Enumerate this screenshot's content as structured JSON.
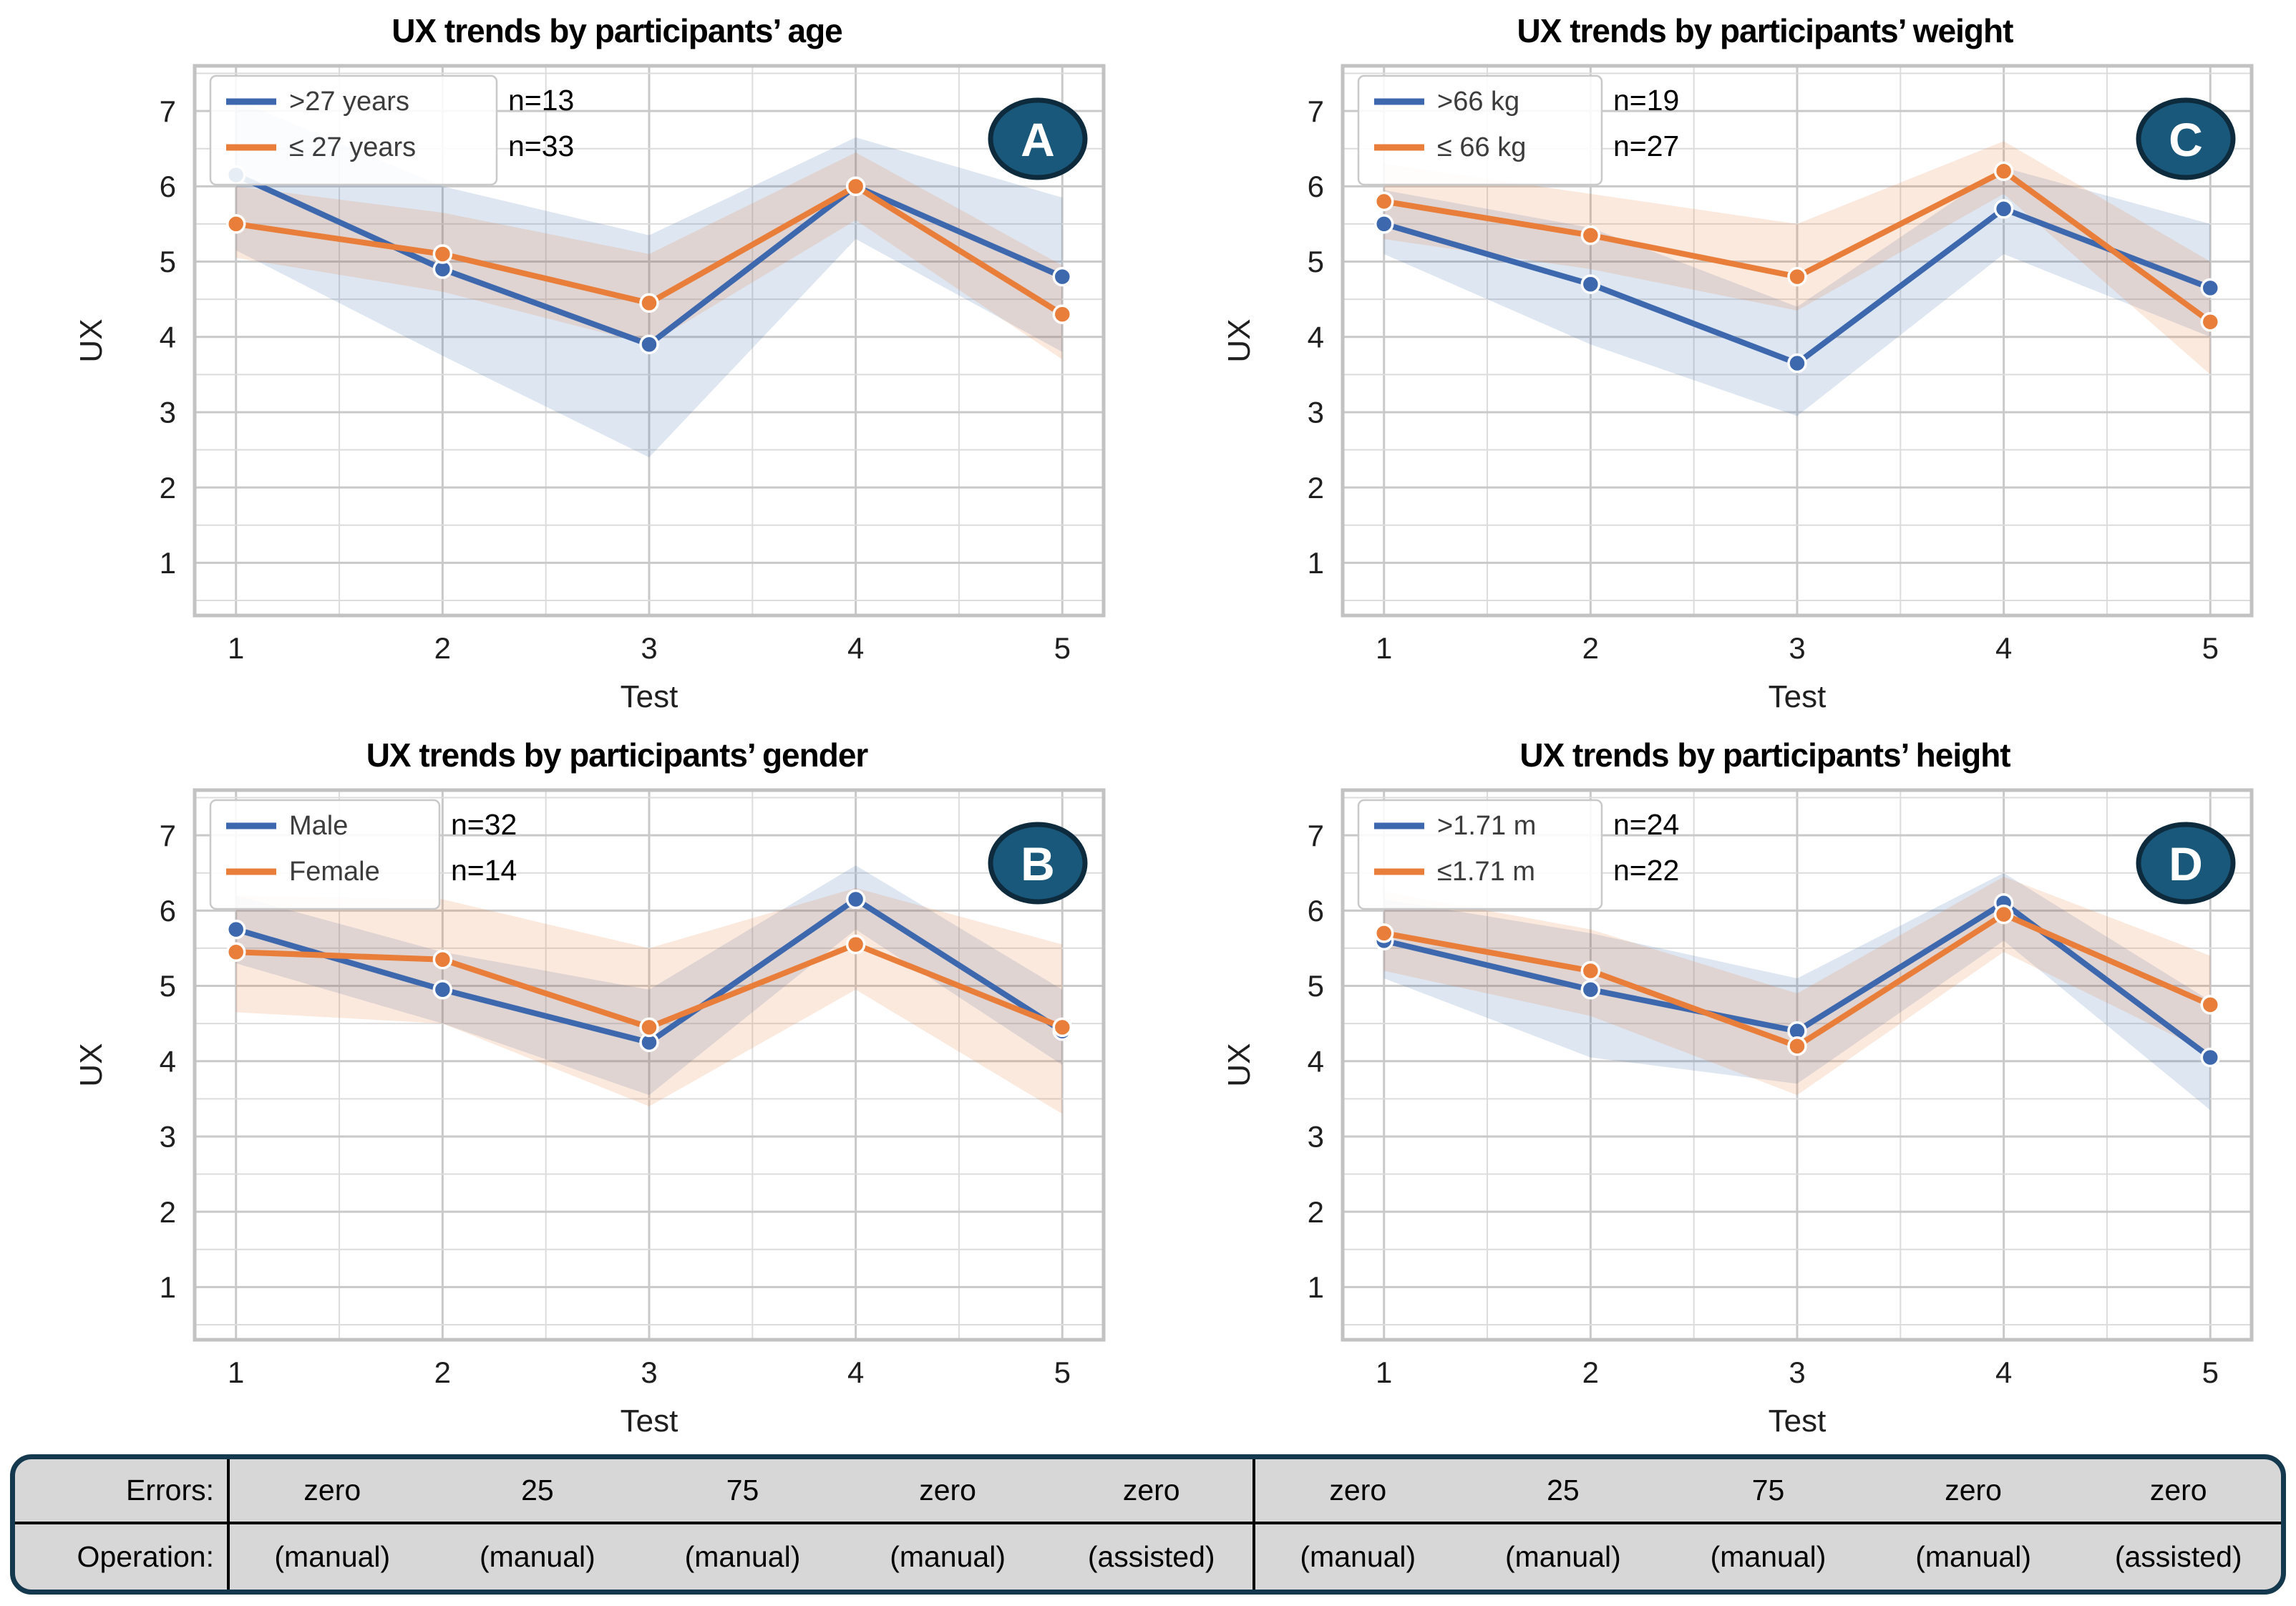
{
  "colors": {
    "blue": "#3d68ae",
    "orange": "#e87e3a",
    "blue_band": "rgba(61,104,174,0.17)",
    "orange_band": "rgba(232,126,58,0.17)",
    "grid_minor": "#dcdcdc",
    "grid_major": "#c9c9c9",
    "frame": "#c2c2c2",
    "badge_fill": "#19587a",
    "badge_border": "#0d2b3c",
    "table_bg": "#d7d7d7",
    "table_border": "#14384e"
  },
  "chart_data": [
    {
      "id": "A",
      "type": "line",
      "badge": "A",
      "title": "UX trends by participants’ age",
      "xlabel": "Test",
      "ylabel": "UX",
      "x": [
        1,
        2,
        3,
        4,
        5
      ],
      "y_ticks": [
        1,
        2,
        3,
        4,
        5,
        6,
        7
      ],
      "xlim": [
        0.8,
        5.2
      ],
      "ylim": [
        0.3,
        7.6
      ],
      "grid": "0.5 steps, on",
      "legend_position": "upper left",
      "series": [
        {
          "name": ">27 years",
          "n": "n=13",
          "color": "blue",
          "values": [
            6.15,
            4.9,
            3.9,
            6.0,
            4.8
          ],
          "band_lower": [
            5.15,
            3.75,
            2.4,
            5.3,
            3.8
          ],
          "band_upper": [
            7.15,
            6.0,
            5.35,
            6.65,
            5.85
          ]
        },
        {
          "name": "≤ 27 years",
          "n": "n=33",
          "color": "orange",
          "values": [
            5.5,
            5.1,
            4.45,
            6.0,
            4.3
          ],
          "band_lower": [
            5.05,
            4.6,
            3.9,
            5.55,
            3.7
          ],
          "band_upper": [
            6.0,
            5.65,
            5.1,
            6.45,
            4.95
          ]
        }
      ]
    },
    {
      "id": "C",
      "type": "line",
      "badge": "C",
      "title": "UX trends by participants’ weight",
      "xlabel": "Test",
      "ylabel": "UX",
      "x": [
        1,
        2,
        3,
        4,
        5
      ],
      "y_ticks": [
        1,
        2,
        3,
        4,
        5,
        6,
        7
      ],
      "xlim": [
        0.8,
        5.2
      ],
      "ylim": [
        0.3,
        7.6
      ],
      "grid": "0.5 steps, on",
      "legend_position": "upper left",
      "series": [
        {
          "name": ">66 kg",
          "n": "n=19",
          "color": "blue",
          "values": [
            5.5,
            4.7,
            3.65,
            5.7,
            4.65
          ],
          "band_lower": [
            5.1,
            3.9,
            2.95,
            5.1,
            4.0
          ],
          "band_upper": [
            5.95,
            5.45,
            4.4,
            6.25,
            5.5
          ]
        },
        {
          "name": "≤ 66 kg",
          "n": "n=27",
          "color": "orange",
          "values": [
            5.8,
            5.35,
            4.8,
            6.2,
            4.2
          ],
          "band_lower": [
            5.3,
            4.9,
            4.35,
            5.9,
            3.5
          ],
          "band_upper": [
            6.3,
            5.9,
            5.5,
            6.6,
            5.0
          ]
        }
      ]
    },
    {
      "id": "B",
      "type": "line",
      "badge": "B",
      "title": "UX trends by participants’ gender",
      "xlabel": "Test",
      "ylabel": "UX",
      "x": [
        1,
        2,
        3,
        4,
        5
      ],
      "y_ticks": [
        1,
        2,
        3,
        4,
        5,
        6,
        7
      ],
      "xlim": [
        0.8,
        5.2
      ],
      "ylim": [
        0.3,
        7.6
      ],
      "grid": "0.5 steps, on",
      "legend_position": "upper left",
      "series": [
        {
          "name": "Male",
          "n": "n=32",
          "color": "blue",
          "values": [
            5.75,
            4.95,
            4.25,
            6.15,
            4.4
          ],
          "band_lower": [
            5.3,
            4.5,
            3.55,
            5.75,
            3.95
          ],
          "band_upper": [
            6.2,
            5.45,
            4.95,
            6.6,
            4.95
          ]
        },
        {
          "name": "Female",
          "n": "n=14",
          "color": "orange",
          "values": [
            5.45,
            5.35,
            4.45,
            5.55,
            4.45
          ],
          "band_lower": [
            4.65,
            4.5,
            3.4,
            4.95,
            3.3
          ],
          "band_upper": [
            6.2,
            6.15,
            5.5,
            6.3,
            5.55
          ]
        }
      ]
    },
    {
      "id": "D",
      "type": "line",
      "badge": "D",
      "title": "UX trends by participants’ height",
      "xlabel": "Test",
      "ylabel": "UX",
      "x": [
        1,
        2,
        3,
        4,
        5
      ],
      "y_ticks": [
        1,
        2,
        3,
        4,
        5,
        6,
        7
      ],
      "xlim": [
        0.8,
        5.2
      ],
      "ylim": [
        0.3,
        7.6
      ],
      "grid": "0.5 steps, on",
      "legend_position": "upper left",
      "series": [
        {
          "name": ">1.71 m",
          "n": "n=24",
          "color": "blue",
          "values": [
            5.6,
            4.95,
            4.4,
            6.1,
            4.05
          ],
          "band_lower": [
            5.1,
            4.05,
            3.7,
            5.6,
            3.35
          ],
          "band_upper": [
            6.15,
            5.7,
            5.1,
            6.5,
            4.8
          ]
        },
        {
          "name": "≤1.71 m",
          "n": "n=22",
          "color": "orange",
          "values": [
            5.7,
            5.2,
            4.2,
            5.95,
            4.75
          ],
          "band_lower": [
            5.2,
            4.6,
            3.55,
            5.45,
            4.1
          ],
          "band_upper": [
            6.25,
            5.75,
            4.9,
            6.45,
            5.4
          ]
        }
      ]
    }
  ],
  "table": {
    "rows": [
      {
        "label": "Errors:",
        "cells": [
          "zero",
          "25",
          "75",
          "zero",
          "zero",
          "zero",
          "25",
          "75",
          "zero",
          "zero"
        ]
      },
      {
        "label": "Operation:",
        "cells": [
          "(manual)",
          "(manual)",
          "(manual)",
          "(manual)",
          "(assisted)",
          "(manual)",
          "(manual)",
          "(manual)",
          "(manual)",
          "(assisted)"
        ]
      }
    ]
  }
}
